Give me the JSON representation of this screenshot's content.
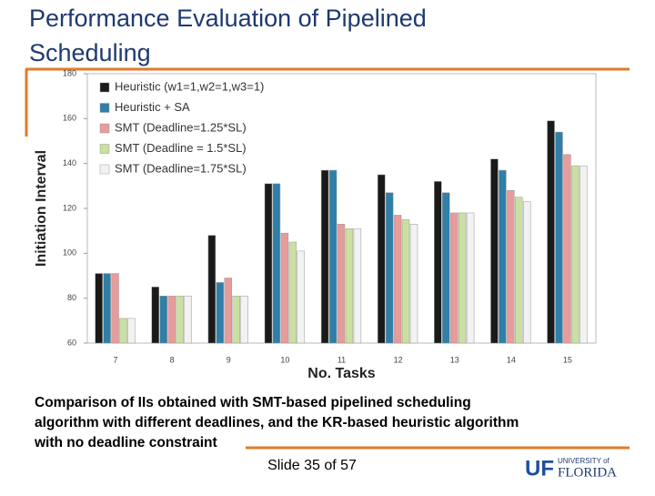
{
  "slide": {
    "title_lines": [
      "Performance Evaluation of Pipelined",
      "Scheduling"
    ],
    "caption_lines": [
      "Comparison of IIs obtained with SMT-based pipelined scheduling",
      "algorithm with different deadlines, and the KR-based heuristic algorithm",
      "with no deadline constraint"
    ],
    "footer": "Slide 35 of 57",
    "logo": {
      "mark": "UF",
      "line1": "UNIVERSITY of",
      "line2": "FLORIDA"
    }
  },
  "chart_data": {
    "type": "bar",
    "x_label": "No. Tasks",
    "y_label": "Initiation Interval",
    "categories": [
      "7",
      "8",
      "9",
      "10",
      "11",
      "12",
      "13",
      "14",
      "15"
    ],
    "series": [
      {
        "name": "Heuristic (w1=1,w2=1,w3=1)",
        "color": "#1a1a1a",
        "values": [
          91,
          85,
          108,
          131,
          137,
          135,
          132,
          142,
          159
        ]
      },
      {
        "name": "Heuristic + SA",
        "color": "#2f7fa8",
        "values": [
          91,
          81,
          87,
          131,
          137,
          127,
          127,
          137,
          154
        ]
      },
      {
        "name": "SMT (Deadline=1.25*SL)",
        "color": "#e79b9b",
        "values": [
          91,
          81,
          89,
          109,
          113,
          117,
          118,
          128,
          144
        ]
      },
      {
        "name": "SMT (Deadline = 1.5*SL)",
        "color": "#cadfa2",
        "values": [
          71,
          81,
          81,
          105,
          111,
          115,
          118,
          125,
          139
        ]
      },
      {
        "name": "SMT (Deadline=1.75*SL)",
        "color": "#f2f2f2",
        "values": [
          71,
          81,
          81,
          101,
          111,
          113,
          118,
          123,
          139
        ]
      }
    ],
    "ylim": [
      60,
      180
    ],
    "yticks": [
      60,
      80,
      100,
      120,
      140,
      160,
      180
    ],
    "legend": "top-left"
  }
}
